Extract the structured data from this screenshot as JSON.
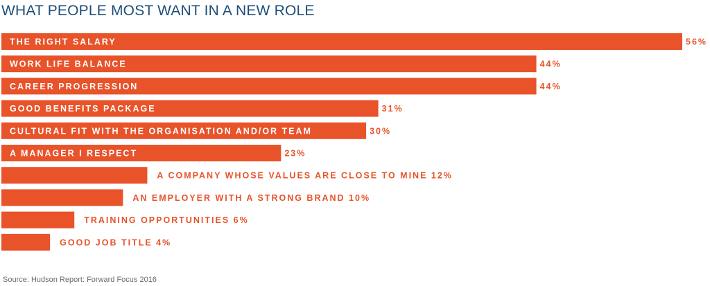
{
  "title": "WHAT PEOPLE MOST WANT IN A NEW ROLE",
  "source": "Source: Hudson Report: Forward Focus 2016",
  "colors": {
    "bar": "#e8532a",
    "inside_text": "#ffffff",
    "outside_text": "#e8532a",
    "title": "#1f4e79"
  },
  "chart_data": {
    "type": "bar",
    "orientation": "horizontal",
    "title": "WHAT PEOPLE MOST WANT IN A NEW ROLE",
    "unit": "%",
    "categories": [
      "THE RIGHT SALARY",
      "WORK LIFE BALANCE",
      "CAREER PROGRESSION",
      "GOOD BENEFITS PACKAGE",
      "CULTURAL FIT WITH THE ORGANISATION AND/OR TEAM",
      "A MANAGER I RESPECT",
      "A COMPANY WHOSE VALUES ARE CLOSE TO MINE",
      "AN EMPLOYER WITH A STRONG BRAND",
      "TRAINING OPPORTUNITIES",
      "GOOD JOB TITLE"
    ],
    "values": [
      56,
      44,
      44,
      31,
      30,
      23,
      12,
      10,
      6,
      4
    ],
    "value_labels": [
      "56%",
      "44%",
      "44%",
      "31%",
      "30%",
      "23%",
      "12%",
      "10%",
      "6%",
      "4%"
    ],
    "label_inside": [
      true,
      true,
      true,
      true,
      true,
      true,
      false,
      false,
      false,
      false
    ]
  }
}
